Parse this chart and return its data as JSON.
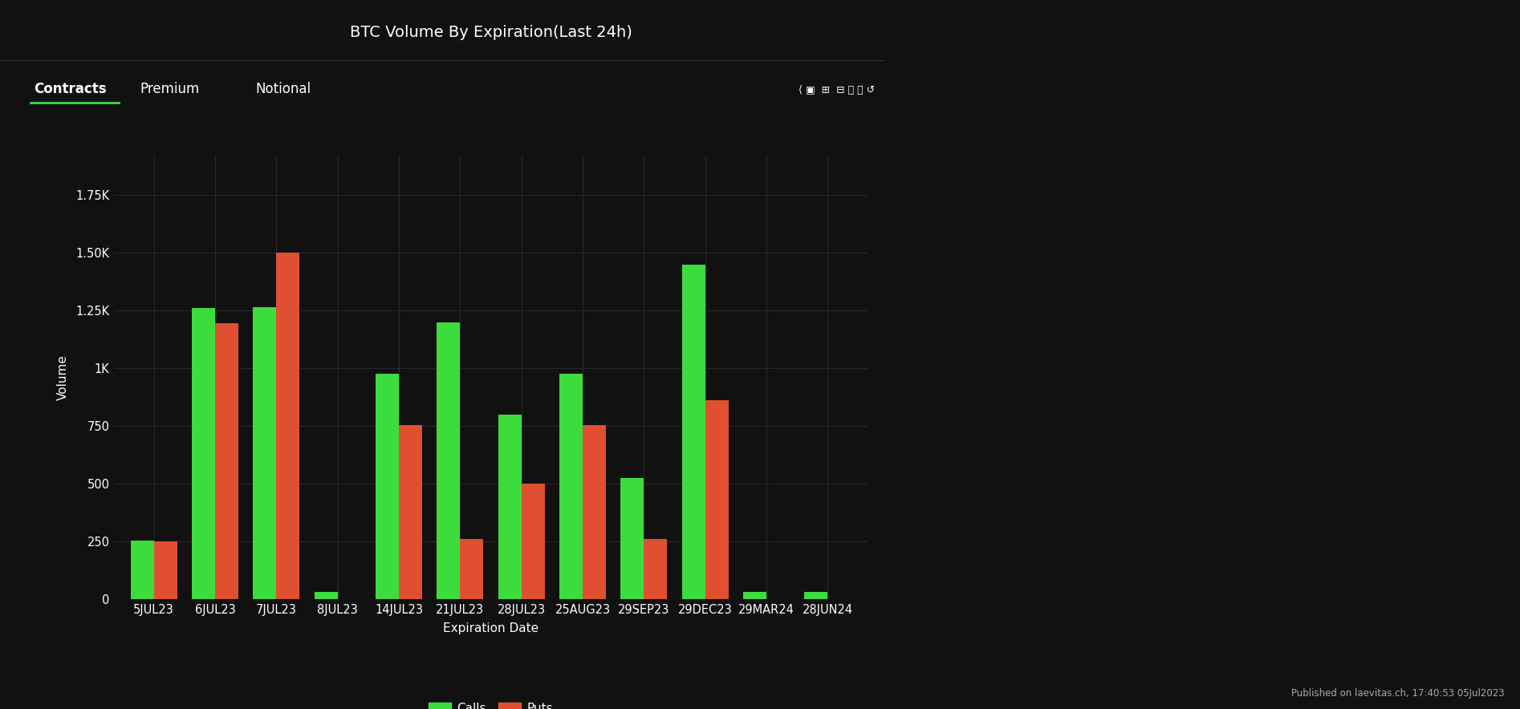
{
  "title": "BTC Volume By Expiration(Last 24h)",
  "xlabel": "Expiration Date",
  "ylabel": "Volume",
  "categories": [
    "5JUL23",
    "6JUL23",
    "7JUL23",
    "8JUL23",
    "14JUL23",
    "21JUL23",
    "28JUL23",
    "25AUG23",
    "29SEP23",
    "29DEC23",
    "29MAR24",
    "28JUN24"
  ],
  "calls": [
    255,
    1260,
    1265,
    32,
    975,
    1200,
    800,
    975,
    525,
    1450,
    30,
    30
  ],
  "puts": [
    250,
    1195,
    1500,
    0,
    755,
    262,
    500,
    755,
    262,
    862,
    0,
    0
  ],
  "calls_color": "#3ddc3d",
  "puts_color": "#e05030",
  "background_color": "#111111",
  "plot_bg_color": "#151515",
  "grid_color": "#2a2a2a",
  "text_color": "#ffffff",
  "dim_text_color": "#aaaaaa",
  "yticks": [
    0,
    250,
    500,
    750,
    1000,
    1250,
    1500,
    1750
  ],
  "ytick_labels": [
    "0",
    "250",
    "500",
    "750",
    "1K",
    "1.25K",
    "1.50K",
    "1.75K"
  ],
  "tab_labels": [
    "Contracts",
    "Premium",
    "Notional"
  ],
  "active_tab": 0,
  "watermark": "Published on laevitas.ch, 17:40:53 05Jul2023",
  "bar_width": 0.38,
  "fig_width": 18.94,
  "fig_height": 8.84,
  "title_fontsize": 14,
  "tick_fontsize": 10.5,
  "label_fontsize": 11,
  "tab_fontsize": 12,
  "legend_fontsize": 11
}
